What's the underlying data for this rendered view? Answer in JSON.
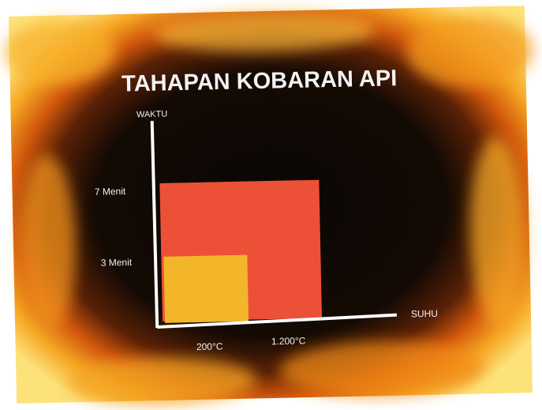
{
  "title": "TAHAPAN KOBARAN API",
  "axes": {
    "y_label": "WAKTU",
    "x_label": "SUHU"
  },
  "y_labels": [
    "7 Menit",
    "3 Menit"
  ],
  "x_labels": [
    "200°C",
    "1.200°C"
  ]
}
